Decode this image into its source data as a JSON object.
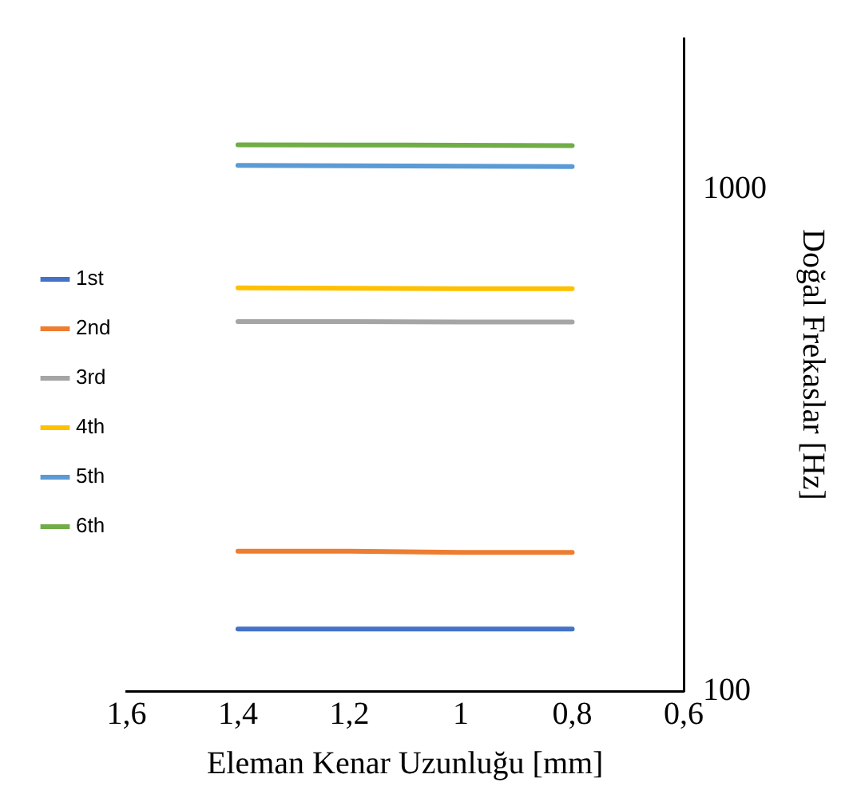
{
  "chart_data": {
    "type": "line",
    "xlabel": "Eleman Kenar Uzunluğu [mm]",
    "ylabel": "Doğal Frekaslar [Hz]",
    "x": [
      1.4,
      1.2,
      1,
      0.8
    ],
    "series": [
      {
        "name": "1st",
        "color": "#4472c4",
        "values": [
          133,
          133,
          133,
          133
        ]
      },
      {
        "name": "2nd",
        "color": "#ed7d31",
        "values": [
          190,
          190,
          189,
          189
        ]
      },
      {
        "name": "3rd",
        "color": "#a5a5a5",
        "values": [
          545,
          545,
          544,
          544
        ]
      },
      {
        "name": "4th",
        "color": "#ffc000",
        "values": [
          636,
          635,
          634,
          634
        ]
      },
      {
        "name": "5th",
        "color": "#5b9bd5",
        "values": [
          1116,
          1114,
          1112,
          1110
        ]
      },
      {
        "name": "6th",
        "color": "#70ad47",
        "values": [
          1227,
          1226,
          1224,
          1222
        ]
      }
    ],
    "xlim": [
      1.6,
      0.6
    ],
    "xticks": [
      {
        "value": 1.6,
        "label": "1,6"
      },
      {
        "value": 1.4,
        "label": "1,4"
      },
      {
        "value": 1.2,
        "label": "1,2"
      },
      {
        "value": 1,
        "label": "1"
      },
      {
        "value": 0.8,
        "label": "0,8"
      },
      {
        "value": 0.6,
        "label": "0,6"
      }
    ],
    "ylim": [
      100,
      2000
    ],
    "yticks": [
      100,
      1000
    ],
    "log": "y",
    "grid": false,
    "legend": "left",
    "marker": "none",
    "line_style": "solid"
  }
}
